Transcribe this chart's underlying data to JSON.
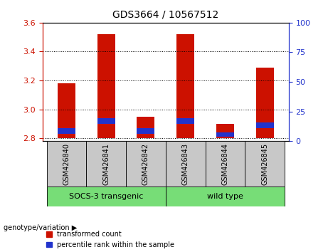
{
  "title": "GDS3664 / 10567512",
  "samples": [
    "GSM426840",
    "GSM426841",
    "GSM426842",
    "GSM426843",
    "GSM426844",
    "GSM426845"
  ],
  "red_top": [
    3.18,
    3.52,
    2.95,
    3.52,
    2.9,
    3.29
  ],
  "blue_bottom": [
    2.83,
    2.9,
    2.83,
    2.9,
    2.81,
    2.87
  ],
  "blue_top": [
    2.87,
    2.94,
    2.87,
    2.94,
    2.84,
    2.91
  ],
  "bar_base": 2.8,
  "ylim_left": [
    2.78,
    3.6
  ],
  "ylim_right": [
    0,
    100
  ],
  "yticks_left": [
    2.8,
    3.0,
    3.2,
    3.4,
    3.6
  ],
  "yticks_right": [
    0,
    25,
    50,
    75,
    100
  ],
  "group1_label": "SOCS-3 transgenic",
  "group2_label": "wild type",
  "group_color": "#77dd77",
  "bar_width": 0.45,
  "red_color": "#cc1100",
  "blue_color": "#2233cc",
  "left_axis_color": "#cc1100",
  "right_axis_color": "#2233cc",
  "grid_color": "black",
  "sample_box_color": "#c8c8c8",
  "legend_red": "transformed count",
  "legend_blue": "percentile rank within the sample",
  "genotype_label": "genotype/variation"
}
